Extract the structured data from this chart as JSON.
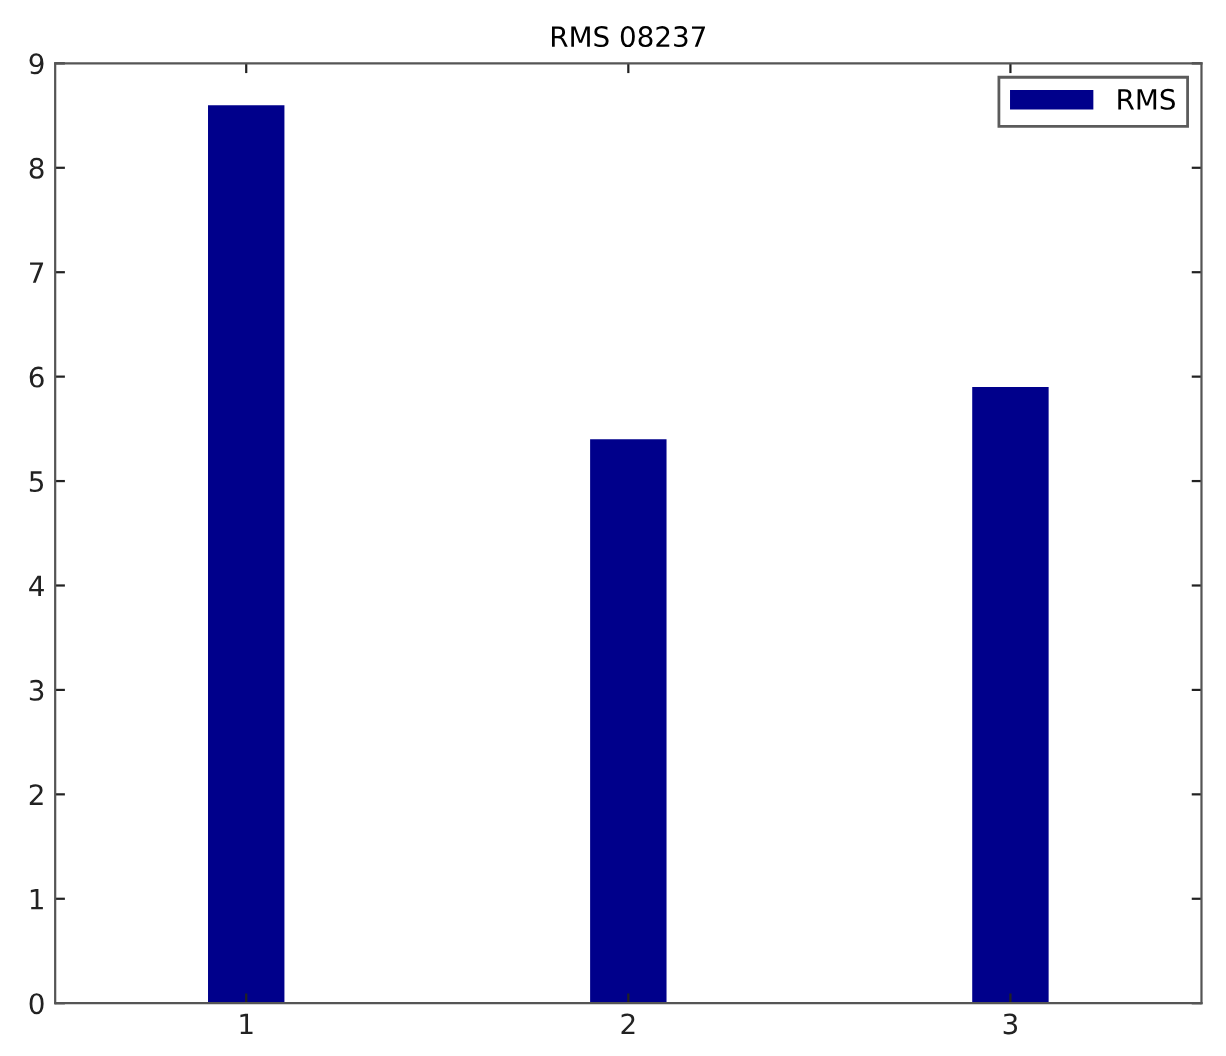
{
  "chart_data": {
    "type": "bar",
    "title": "RMS 08237",
    "categories": [
      "1",
      "2",
      "3"
    ],
    "series": [
      {
        "name": "RMS",
        "color": "#00008b",
        "values": [
          8.6,
          5.4,
          5.9
        ]
      }
    ],
    "ylim": [
      0,
      9
    ],
    "yticks": [
      0,
      1,
      2,
      3,
      4,
      5,
      6,
      7,
      8,
      9
    ],
    "legend": "top right",
    "grid": false
  }
}
